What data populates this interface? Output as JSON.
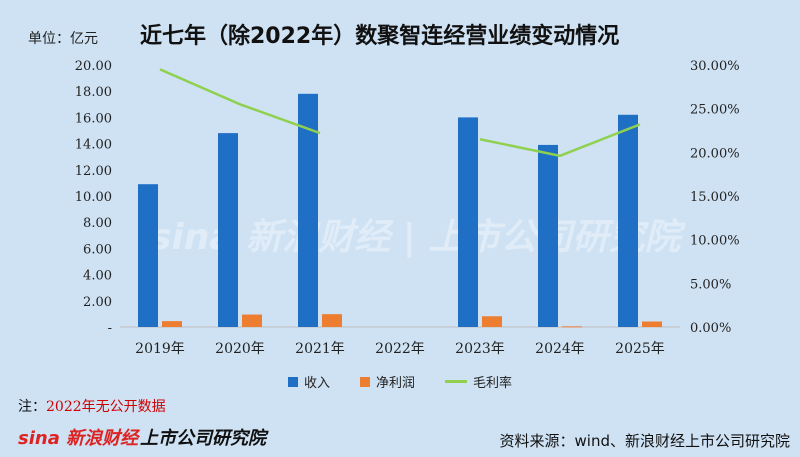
{
  "header": {
    "unit": "单位：亿元",
    "title": "近七年（除2022年）数聚智连经营业绩变动情况"
  },
  "footer": {
    "note_label": "注：",
    "note_text": "2022年无公开数据",
    "source": "资料来源：wind、新浪财经上市公司研究院",
    "brand_sina": "sina 新浪财经",
    "brand_institute": "上市公司研究院"
  },
  "watermark": "sina 新浪财经 | 上市公司研究院",
  "colors": {
    "revenue": "#1f6fc5",
    "profit": "#ed7d31",
    "margin": "#8fd14f"
  },
  "chart_data": {
    "type": "bar",
    "categories": [
      "2019年",
      "2020年",
      "2021年",
      "2022年",
      "2023年",
      "2024年",
      "2025年"
    ],
    "series": [
      {
        "name": "收入",
        "type": "bar",
        "axis": "left",
        "values": [
          10.9,
          14.8,
          17.8,
          null,
          16.0,
          13.9,
          16.2
        ]
      },
      {
        "name": "净利润",
        "type": "bar",
        "axis": "left",
        "values": [
          0.45,
          0.95,
          0.98,
          null,
          0.82,
          0.05,
          0.42
        ]
      },
      {
        "name": "毛利率",
        "type": "line",
        "axis": "right",
        "values": [
          29.5,
          25.5,
          22.2,
          null,
          21.5,
          19.6,
          23.2
        ]
      }
    ],
    "y_left": {
      "ylim": [
        0,
        20
      ],
      "ticks": [
        0,
        2,
        4,
        6,
        8,
        10,
        12,
        14,
        16,
        18,
        20
      ],
      "tick_labels": [
        "-",
        "2.00",
        "4.00",
        "6.00",
        "8.00",
        "10.00",
        "12.00",
        "14.00",
        "16.00",
        "18.00",
        "20.00"
      ]
    },
    "y_right": {
      "ylim": [
        0,
        30
      ],
      "ticks": [
        0,
        5,
        10,
        15,
        20,
        25,
        30
      ],
      "tick_labels": [
        "0.00%",
        "5.00%",
        "10.00%",
        "15.00%",
        "20.00%",
        "25.00%",
        "30.00%"
      ]
    },
    "legend": [
      "收入",
      "净利润",
      "毛利率"
    ],
    "legend_position": "bottom",
    "grid": false
  }
}
